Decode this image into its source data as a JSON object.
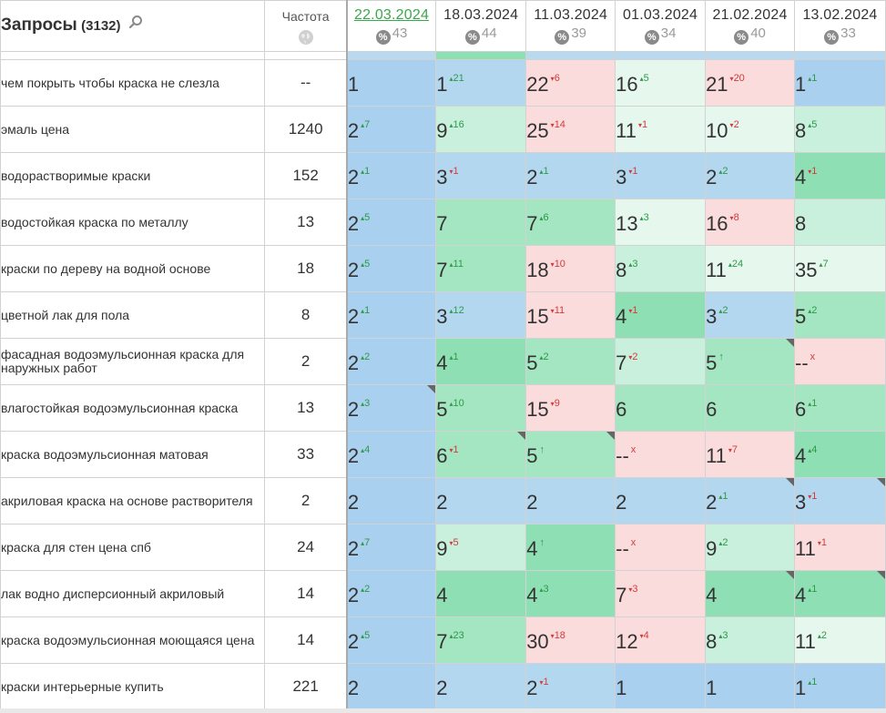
{
  "header": {
    "queries_title": "Запросы",
    "queries_count": "(3132)",
    "frequency_label": "Частота",
    "dates": [
      {
        "label": "22.03.2024",
        "meta": "43",
        "link": true
      },
      {
        "label": "18.03.2024",
        "meta": "44",
        "link": false
      },
      {
        "label": "11.03.2024",
        "meta": "39",
        "link": false
      },
      {
        "label": "01.03.2024",
        "meta": "34",
        "link": false
      },
      {
        "label": "21.02.2024",
        "meta": "40",
        "link": false
      },
      {
        "label": "13.02.2024",
        "meta": "33",
        "link": false
      }
    ]
  },
  "rows": [
    {
      "query": "чем покрыть чтобы краска не слезла",
      "freq": "--",
      "cells": [
        {
          "v": "1",
          "d": "",
          "t": "",
          "c": "c-blue2"
        },
        {
          "v": "1",
          "d": "21",
          "t": "up",
          "c": "c-blue"
        },
        {
          "v": "22",
          "d": "6",
          "t": "down",
          "c": "c-pink"
        },
        {
          "v": "16",
          "d": "5",
          "t": "up",
          "c": "c-vlgreen"
        },
        {
          "v": "21",
          "d": "20",
          "t": "down",
          "c": "c-pink"
        },
        {
          "v": "1",
          "d": "1",
          "t": "up",
          "c": "c-blue2"
        }
      ]
    },
    {
      "query": "эмаль цена",
      "freq": "1240",
      "cells": [
        {
          "v": "2",
          "d": "7",
          "t": "up",
          "c": "c-blue2"
        },
        {
          "v": "9",
          "d": "16",
          "t": "up",
          "c": "c-lgreen"
        },
        {
          "v": "25",
          "d": "14",
          "t": "down",
          "c": "c-pink"
        },
        {
          "v": "11",
          "d": "1",
          "t": "down",
          "c": "c-vlgreen"
        },
        {
          "v": "10",
          "d": "2",
          "t": "down",
          "c": "c-vlgreen"
        },
        {
          "v": "8",
          "d": "5",
          "t": "up",
          "c": "c-lgreen"
        }
      ]
    },
    {
      "query": "водорастворимые краски",
      "freq": "152",
      "cells": [
        {
          "v": "2",
          "d": "1",
          "t": "up",
          "c": "c-blue2"
        },
        {
          "v": "3",
          "d": "1",
          "t": "down",
          "c": "c-blue"
        },
        {
          "v": "2",
          "d": "1",
          "t": "up",
          "c": "c-blue"
        },
        {
          "v": "3",
          "d": "1",
          "t": "down",
          "c": "c-blue"
        },
        {
          "v": "2",
          "d": "2",
          "t": "up",
          "c": "c-blue"
        },
        {
          "v": "4",
          "d": "1",
          "t": "down",
          "c": "c-green2"
        }
      ]
    },
    {
      "query": "водостойкая краска по металлу",
      "freq": "13",
      "cells": [
        {
          "v": "2",
          "d": "5",
          "t": "up",
          "c": "c-blue2"
        },
        {
          "v": "7",
          "d": "",
          "t": "",
          "c": "c-green"
        },
        {
          "v": "7",
          "d": "6",
          "t": "up",
          "c": "c-green"
        },
        {
          "v": "13",
          "d": "3",
          "t": "up",
          "c": "c-vlgreen"
        },
        {
          "v": "16",
          "d": "8",
          "t": "down",
          "c": "c-pink"
        },
        {
          "v": "8",
          "d": "",
          "t": "",
          "c": "c-lgreen"
        }
      ]
    },
    {
      "query": "краски по дереву на водной основе",
      "freq": "18",
      "cells": [
        {
          "v": "2",
          "d": "5",
          "t": "up",
          "c": "c-blue2"
        },
        {
          "v": "7",
          "d": "11",
          "t": "up",
          "c": "c-green"
        },
        {
          "v": "18",
          "d": "10",
          "t": "down",
          "c": "c-pink"
        },
        {
          "v": "8",
          "d": "3",
          "t": "up",
          "c": "c-lgreen"
        },
        {
          "v": "11",
          "d": "24",
          "t": "up",
          "c": "c-vlgreen"
        },
        {
          "v": "35",
          "d": "7",
          "t": "up",
          "c": "c-vlgreen"
        }
      ]
    },
    {
      "query": "цветной лак для пола",
      "freq": "8",
      "cells": [
        {
          "v": "2",
          "d": "1",
          "t": "up",
          "c": "c-blue2"
        },
        {
          "v": "3",
          "d": "12",
          "t": "up",
          "c": "c-blue"
        },
        {
          "v": "15",
          "d": "11",
          "t": "down",
          "c": "c-pink"
        },
        {
          "v": "4",
          "d": "1",
          "t": "down",
          "c": "c-green2"
        },
        {
          "v": "3",
          "d": "2",
          "t": "up",
          "c": "c-blue"
        },
        {
          "v": "5",
          "d": "2",
          "t": "up",
          "c": "c-green"
        }
      ]
    },
    {
      "query": "фасадная водоэмульсионная краска для наружных работ",
      "freq": "2",
      "cells": [
        {
          "v": "2",
          "d": "2",
          "t": "up",
          "c": "c-blue2"
        },
        {
          "v": "4",
          "d": "1",
          "t": "up",
          "c": "c-green2"
        },
        {
          "v": "5",
          "d": "2",
          "t": "up",
          "c": "c-green"
        },
        {
          "v": "7",
          "d": "2",
          "t": "down",
          "c": "c-lgreen"
        },
        {
          "v": "5",
          "d": "↑",
          "t": "up",
          "c": "c-green",
          "corner": true
        },
        {
          "v": "--",
          "d": "x",
          "t": "down",
          "c": "c-pink"
        }
      ]
    },
    {
      "query": "влагостойкая водоэмульсионная краска",
      "freq": "13",
      "cells": [
        {
          "v": "2",
          "d": "3",
          "t": "up",
          "c": "c-blue2",
          "corner": true
        },
        {
          "v": "5",
          "d": "10",
          "t": "up",
          "c": "c-green"
        },
        {
          "v": "15",
          "d": "9",
          "t": "down",
          "c": "c-pink"
        },
        {
          "v": "6",
          "d": "",
          "t": "",
          "c": "c-green"
        },
        {
          "v": "6",
          "d": "",
          "t": "",
          "c": "c-green"
        },
        {
          "v": "6",
          "d": "1",
          "t": "up",
          "c": "c-green"
        }
      ]
    },
    {
      "query": "краска водоэмульсионная матовая",
      "freq": "33",
      "cells": [
        {
          "v": "2",
          "d": "4",
          "t": "up",
          "c": "c-blue2"
        },
        {
          "v": "6",
          "d": "1",
          "t": "down",
          "c": "c-green",
          "corner": true
        },
        {
          "v": "5",
          "d": "↑",
          "t": "up",
          "c": "c-green",
          "corner": true
        },
        {
          "v": "--",
          "d": "x",
          "t": "down",
          "c": "c-pink"
        },
        {
          "v": "11",
          "d": "7",
          "t": "down",
          "c": "c-pink"
        },
        {
          "v": "4",
          "d": "4",
          "t": "up",
          "c": "c-green2"
        }
      ]
    },
    {
      "query": "акриловая краска на основе растворителя",
      "freq": "2",
      "cells": [
        {
          "v": "2",
          "d": "",
          "t": "",
          "c": "c-blue2"
        },
        {
          "v": "2",
          "d": "",
          "t": "",
          "c": "c-blue"
        },
        {
          "v": "2",
          "d": "",
          "t": "",
          "c": "c-blue"
        },
        {
          "v": "2",
          "d": "",
          "t": "",
          "c": "c-blue"
        },
        {
          "v": "2",
          "d": "1",
          "t": "up",
          "c": "c-blue",
          "corner": true
        },
        {
          "v": "3",
          "d": "1",
          "t": "down",
          "c": "c-blue",
          "corner": true
        }
      ]
    },
    {
      "query": "краска для стен цена спб",
      "freq": "24",
      "cells": [
        {
          "v": "2",
          "d": "7",
          "t": "up",
          "c": "c-blue2"
        },
        {
          "v": "9",
          "d": "5",
          "t": "down",
          "c": "c-lgreen"
        },
        {
          "v": "4",
          "d": "↑",
          "t": "up",
          "c": "c-green2"
        },
        {
          "v": "--",
          "d": "x",
          "t": "down",
          "c": "c-pink"
        },
        {
          "v": "9",
          "d": "2",
          "t": "up",
          "c": "c-lgreen"
        },
        {
          "v": "11",
          "d": "1",
          "t": "down",
          "c": "c-pink"
        }
      ]
    },
    {
      "query": "лак водно дисперсионный акриловый",
      "freq": "14",
      "cells": [
        {
          "v": "2",
          "d": "2",
          "t": "up",
          "c": "c-blue2"
        },
        {
          "v": "4",
          "d": "",
          "t": "",
          "c": "c-green2"
        },
        {
          "v": "4",
          "d": "3",
          "t": "up",
          "c": "c-green2"
        },
        {
          "v": "7",
          "d": "3",
          "t": "down",
          "c": "c-pink"
        },
        {
          "v": "4",
          "d": "",
          "t": "",
          "c": "c-green2",
          "corner": true
        },
        {
          "v": "4",
          "d": "1",
          "t": "up",
          "c": "c-green2",
          "corner": true
        }
      ]
    },
    {
      "query": "краска водоэмульсионная моющаяся цена",
      "freq": "14",
      "cells": [
        {
          "v": "2",
          "d": "5",
          "t": "up",
          "c": "c-blue2"
        },
        {
          "v": "7",
          "d": "23",
          "t": "up",
          "c": "c-green"
        },
        {
          "v": "30",
          "d": "18",
          "t": "down",
          "c": "c-pink"
        },
        {
          "v": "12",
          "d": "4",
          "t": "down",
          "c": "c-pink"
        },
        {
          "v": "8",
          "d": "3",
          "t": "up",
          "c": "c-lgreen"
        },
        {
          "v": "11",
          "d": "2",
          "t": "up",
          "c": "c-vlgreen"
        }
      ]
    },
    {
      "query": "краски интерьерные купить",
      "freq": "221",
      "cells": [
        {
          "v": "2",
          "d": "",
          "t": "",
          "c": "c-blue2"
        },
        {
          "v": "2",
          "d": "",
          "t": "",
          "c": "c-blue"
        },
        {
          "v": "2",
          "d": "1",
          "t": "down",
          "c": "c-blue"
        },
        {
          "v": "1",
          "d": "",
          "t": "",
          "c": "c-blue2"
        },
        {
          "v": "1",
          "d": "",
          "t": "",
          "c": "c-blue2"
        },
        {
          "v": "1",
          "d": "1",
          "t": "up",
          "c": "c-blue2"
        }
      ]
    }
  ]
}
